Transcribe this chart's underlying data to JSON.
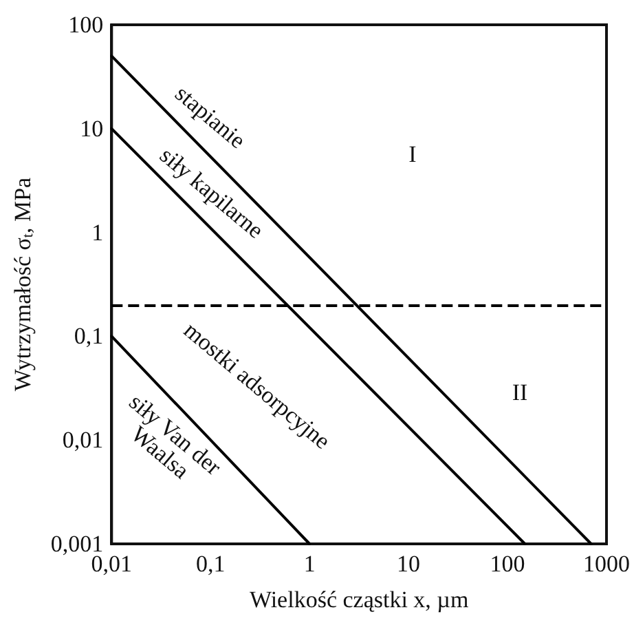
{
  "chart_data": {
    "type": "line",
    "xlabel": "Wielkość cząstki x, µm",
    "ylabel": "Wytrzymałość σ$_{t}$, MPa",
    "log": "xy",
    "grid": false,
    "marker": "none",
    "line_style": "solid",
    "xlim": [
      0.01,
      1000
    ],
    "ylim": [
      0.001,
      100
    ],
    "xticks": [
      {
        "value": 0.01,
        "label": "0,01"
      },
      {
        "value": 0.1,
        "label": "0,1"
      },
      1,
      10,
      100,
      1000
    ],
    "yticks": [
      {
        "value": 0.001,
        "label": "0,001"
      },
      {
        "value": 0.01,
        "label": "0,01"
      },
      {
        "value": 0.1,
        "label": "0,1"
      },
      1,
      10,
      100
    ],
    "series": [
      {
        "color": "#000000",
        "x": [
          0.01,
          700
        ],
        "values": [
          50,
          0.001
        ]
      },
      {
        "color": "#000000",
        "x": [
          0.01,
          150
        ],
        "values": [
          10,
          0.001
        ]
      },
      {
        "color": "#000000",
        "x": [
          0.01,
          1
        ],
        "values": [
          0.1,
          0.001
        ]
      }
    ],
    "ref_lines": [
      {
        "axis": "y",
        "value": 0.2,
        "color": "#000000",
        "line_style": "dashed"
      }
    ],
    "annotations": [
      "stapianie",
      "siły kapilarne",
      "mostki adsorpcyjne",
      "siły Van der\nWaalsa",
      "I",
      "II"
    ]
  }
}
